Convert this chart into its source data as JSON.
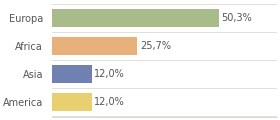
{
  "categories": [
    "Europa",
    "Africa",
    "Asia",
    "America"
  ],
  "values": [
    50.3,
    25.7,
    12.0,
    12.0
  ],
  "labels": [
    "50,3%",
    "25,7%",
    "12,0%",
    "12,0%"
  ],
  "bar_colors": [
    "#a8bb8a",
    "#e8b07a",
    "#7080b0",
    "#e8d070"
  ],
  "background_color": "#ffffff",
  "xlim": [
    0,
    68
  ],
  "figsize": [
    2.8,
    1.2
  ],
  "dpi": 100,
  "label_fontsize": 7,
  "tick_fontsize": 7
}
